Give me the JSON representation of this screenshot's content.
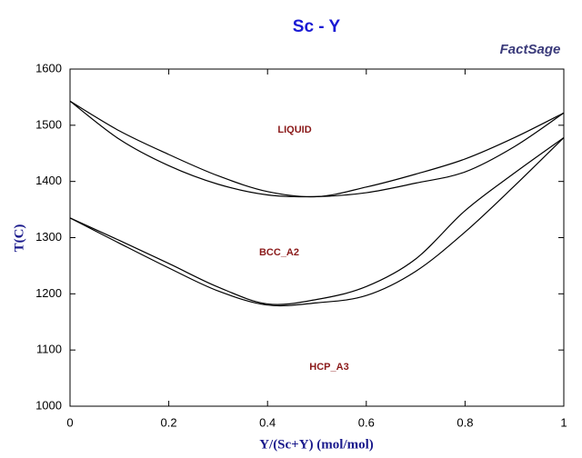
{
  "chart_data": {
    "type": "line",
    "title": "Sc - Y",
    "x_label": "Y/(Sc+Y) (mol/mol)",
    "y_label": "T(C)",
    "x": [
      0,
      0.1,
      0.2,
      0.3,
      0.4,
      0.5,
      0.6,
      0.7,
      0.8,
      0.9,
      1
    ],
    "series": [
      {
        "color": "#000000",
        "values": [
          1543,
          1490,
          1448,
          1410,
          1382,
          1373,
          1390,
          1413,
          1440,
          1478,
          1522
        ]
      },
      {
        "color": "#000000",
        "values": [
          1543,
          1475,
          1428,
          1395,
          1376,
          1373,
          1380,
          1397,
          1417,
          1462,
          1522
        ]
      },
      {
        "color": "#000000",
        "values": [
          1335,
          1295,
          1254,
          1212,
          1182,
          1190,
          1213,
          1262,
          1348,
          1415,
          1478
        ]
      },
      {
        "color": "#000000",
        "values": [
          1335,
          1290,
          1246,
          1205,
          1180,
          1184,
          1197,
          1240,
          1310,
          1392,
          1478
        ]
      }
    ],
    "annotations": [
      "LIQUID",
      "BCC_A2",
      "HCP_A3"
    ],
    "xlim": [
      0,
      1
    ],
    "ylim": [
      1000,
      1600
    ],
    "xticks": [
      0,
      0.2,
      0.4,
      0.6,
      0.8,
      1
    ],
    "yticks": [
      1000,
      1100,
      1200,
      1300,
      1400,
      1500,
      1600
    ]
  },
  "logo": "FactSage"
}
